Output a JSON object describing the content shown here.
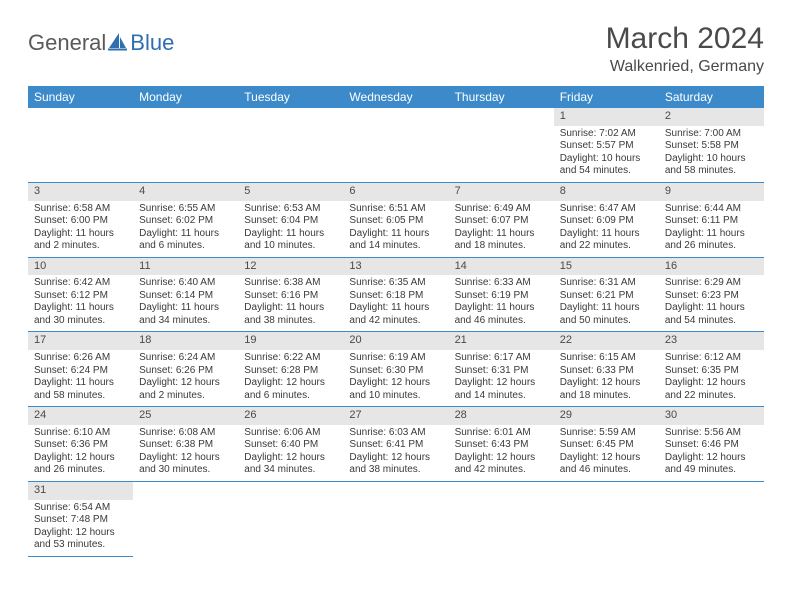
{
  "logo": {
    "text1": "General",
    "text2": "Blue"
  },
  "title": "March 2024",
  "location": "Walkenried, Germany",
  "colors": {
    "header_bg": "#3c8ac9",
    "header_text": "#ffffff",
    "daynum_bg": "#e6e6e6",
    "border": "#3c8ac9",
    "body_text": "#3a3a3a",
    "title_text": "#4a4a4a",
    "logo_gray": "#5a5a5a",
    "logo_blue": "#2f6fb0"
  },
  "daysOfWeek": [
    "Sunday",
    "Monday",
    "Tuesday",
    "Wednesday",
    "Thursday",
    "Friday",
    "Saturday"
  ],
  "startWeekday": 5,
  "daysInMonth": 31,
  "cells": {
    "1": {
      "sunrise": "7:02 AM",
      "sunset": "5:57 PM",
      "daylight": "10 hours and 54 minutes."
    },
    "2": {
      "sunrise": "7:00 AM",
      "sunset": "5:58 PM",
      "daylight": "10 hours and 58 minutes."
    },
    "3": {
      "sunrise": "6:58 AM",
      "sunset": "6:00 PM",
      "daylight": "11 hours and 2 minutes."
    },
    "4": {
      "sunrise": "6:55 AM",
      "sunset": "6:02 PM",
      "daylight": "11 hours and 6 minutes."
    },
    "5": {
      "sunrise": "6:53 AM",
      "sunset": "6:04 PM",
      "daylight": "11 hours and 10 minutes."
    },
    "6": {
      "sunrise": "6:51 AM",
      "sunset": "6:05 PM",
      "daylight": "11 hours and 14 minutes."
    },
    "7": {
      "sunrise": "6:49 AM",
      "sunset": "6:07 PM",
      "daylight": "11 hours and 18 minutes."
    },
    "8": {
      "sunrise": "6:47 AM",
      "sunset": "6:09 PM",
      "daylight": "11 hours and 22 minutes."
    },
    "9": {
      "sunrise": "6:44 AM",
      "sunset": "6:11 PM",
      "daylight": "11 hours and 26 minutes."
    },
    "10": {
      "sunrise": "6:42 AM",
      "sunset": "6:12 PM",
      "daylight": "11 hours and 30 minutes."
    },
    "11": {
      "sunrise": "6:40 AM",
      "sunset": "6:14 PM",
      "daylight": "11 hours and 34 minutes."
    },
    "12": {
      "sunrise": "6:38 AM",
      "sunset": "6:16 PM",
      "daylight": "11 hours and 38 minutes."
    },
    "13": {
      "sunrise": "6:35 AM",
      "sunset": "6:18 PM",
      "daylight": "11 hours and 42 minutes."
    },
    "14": {
      "sunrise": "6:33 AM",
      "sunset": "6:19 PM",
      "daylight": "11 hours and 46 minutes."
    },
    "15": {
      "sunrise": "6:31 AM",
      "sunset": "6:21 PM",
      "daylight": "11 hours and 50 minutes."
    },
    "16": {
      "sunrise": "6:29 AM",
      "sunset": "6:23 PM",
      "daylight": "11 hours and 54 minutes."
    },
    "17": {
      "sunrise": "6:26 AM",
      "sunset": "6:24 PM",
      "daylight": "11 hours and 58 minutes."
    },
    "18": {
      "sunrise": "6:24 AM",
      "sunset": "6:26 PM",
      "daylight": "12 hours and 2 minutes."
    },
    "19": {
      "sunrise": "6:22 AM",
      "sunset": "6:28 PM",
      "daylight": "12 hours and 6 minutes."
    },
    "20": {
      "sunrise": "6:19 AM",
      "sunset": "6:30 PM",
      "daylight": "12 hours and 10 minutes."
    },
    "21": {
      "sunrise": "6:17 AM",
      "sunset": "6:31 PM",
      "daylight": "12 hours and 14 minutes."
    },
    "22": {
      "sunrise": "6:15 AM",
      "sunset": "6:33 PM",
      "daylight": "12 hours and 18 minutes."
    },
    "23": {
      "sunrise": "6:12 AM",
      "sunset": "6:35 PM",
      "daylight": "12 hours and 22 minutes."
    },
    "24": {
      "sunrise": "6:10 AM",
      "sunset": "6:36 PM",
      "daylight": "12 hours and 26 minutes."
    },
    "25": {
      "sunrise": "6:08 AM",
      "sunset": "6:38 PM",
      "daylight": "12 hours and 30 minutes."
    },
    "26": {
      "sunrise": "6:06 AM",
      "sunset": "6:40 PM",
      "daylight": "12 hours and 34 minutes."
    },
    "27": {
      "sunrise": "6:03 AM",
      "sunset": "6:41 PM",
      "daylight": "12 hours and 38 minutes."
    },
    "28": {
      "sunrise": "6:01 AM",
      "sunset": "6:43 PM",
      "daylight": "12 hours and 42 minutes."
    },
    "29": {
      "sunrise": "5:59 AM",
      "sunset": "6:45 PM",
      "daylight": "12 hours and 46 minutes."
    },
    "30": {
      "sunrise": "5:56 AM",
      "sunset": "6:46 PM",
      "daylight": "12 hours and 49 minutes."
    },
    "31": {
      "sunrise": "6:54 AM",
      "sunset": "7:48 PM",
      "daylight": "12 hours and 53 minutes."
    }
  },
  "labels": {
    "sunrise": "Sunrise:",
    "sunset": "Sunset:",
    "daylight": "Daylight:"
  }
}
